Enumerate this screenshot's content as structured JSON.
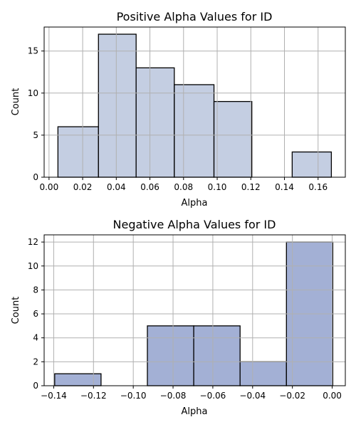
{
  "chart_data": [
    {
      "type": "bar",
      "title": "Positive Alpha Values for ID",
      "xlabel": "Alpha",
      "ylabel": "Count",
      "grid": true,
      "color": "#c4cee2",
      "xlim": [
        -0.0029,
        0.1762
      ],
      "ylim": [
        0,
        17.85
      ],
      "xticks": [
        0.0,
        0.02,
        0.04,
        0.06,
        0.08,
        0.1,
        0.12,
        0.14,
        0.16
      ],
      "xtick_labels": [
        "0.00",
        "0.02",
        "0.04",
        "0.06",
        "0.08",
        "0.10",
        "0.12",
        "0.14",
        "0.16"
      ],
      "yticks": [
        0,
        5,
        10,
        15
      ],
      "ytick_labels": [
        "0",
        "5",
        "10",
        "15"
      ],
      "bins": [
        {
          "start": 0.0053,
          "end": 0.0294,
          "count": 6
        },
        {
          "start": 0.0294,
          "end": 0.0518,
          "count": 17
        },
        {
          "start": 0.0518,
          "end": 0.0745,
          "count": 13
        },
        {
          "start": 0.0745,
          "end": 0.0981,
          "count": 11
        },
        {
          "start": 0.0981,
          "end": 0.1206,
          "count": 9
        },
        {
          "start": 0.1206,
          "end": 0.1446,
          "count": 0
        },
        {
          "start": 0.1446,
          "end": 0.1679,
          "count": 3
        }
      ]
    },
    {
      "type": "bar",
      "title": "Negative Alpha Values for ID",
      "xlabel": "Alpha",
      "ylabel": "Count",
      "grid": true,
      "color": "#a3b0d5",
      "xlim": [
        -0.1448,
        0.0066
      ],
      "ylim": [
        0,
        12.6
      ],
      "xticks": [
        -0.14,
        -0.12,
        -0.1,
        -0.08,
        -0.06,
        -0.04,
        -0.02,
        0.0
      ],
      "xtick_labels": [
        "−0.14",
        "−0.12",
        "−0.10",
        "−0.08",
        "−0.06",
        "−0.04",
        "−0.02",
        "0.00"
      ],
      "yticks": [
        0,
        2,
        4,
        6,
        8,
        10,
        12
      ],
      "ytick_labels": [
        "0",
        "2",
        "4",
        "6",
        "8",
        "10",
        "12"
      ],
      "bins": [
        {
          "start": -0.1395,
          "end": -0.1162,
          "count": 1
        },
        {
          "start": -0.1162,
          "end": -0.0929,
          "count": 0
        },
        {
          "start": -0.0929,
          "end": -0.0696,
          "count": 5
        },
        {
          "start": -0.0696,
          "end": -0.0463,
          "count": 5
        },
        {
          "start": -0.0463,
          "end": -0.023,
          "count": 2
        },
        {
          "start": -0.023,
          "end": 0.0003,
          "count": 12
        }
      ]
    }
  ]
}
